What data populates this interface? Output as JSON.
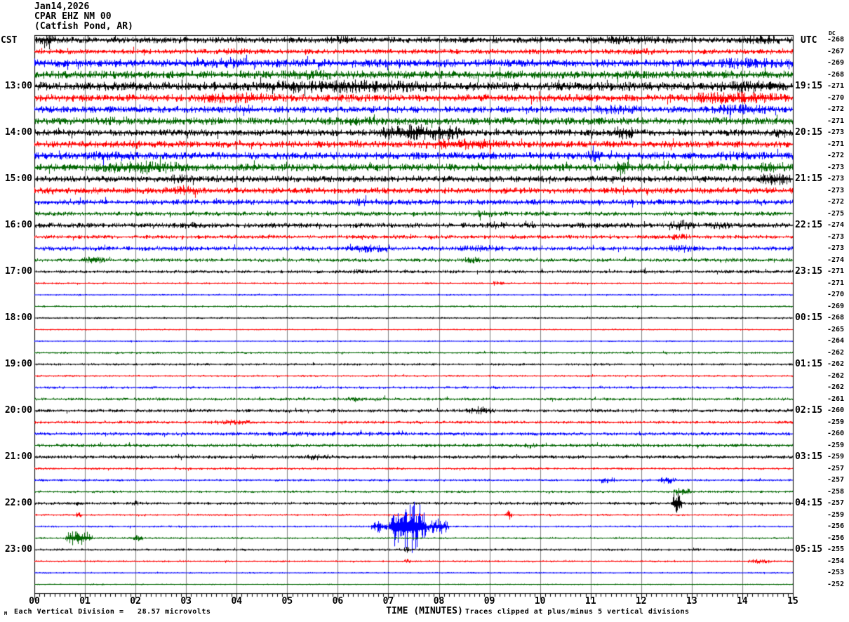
{
  "title": {
    "line1": "Jan14,2026",
    "line2": "CPAR EHZ NM 00",
    "line3": "(Catfish Pond, AR)"
  },
  "axes": {
    "left_header": "CST",
    "right_header": "UTC",
    "dc_header": "DC",
    "x_axis_title": "TIME (MINUTES)",
    "x_tick_labels": [
      "00",
      "01",
      "02",
      "03",
      "04",
      "05",
      "06",
      "07",
      "08",
      "09",
      "10",
      "11",
      "12",
      "13",
      "14",
      "15"
    ]
  },
  "footer": {
    "left_glyph": "M",
    "scale_note": "Each Vertical Division =   28.57 microvolts",
    "clip_note": "Traces clipped at plus/minus 5 vertical divisions"
  },
  "colors": {
    "black": "#000000",
    "red": "#ff0000",
    "blue": "#0000ff",
    "green": "#006600",
    "grid": "#808080",
    "background": "#ffffff"
  },
  "chart_data": {
    "type": "line",
    "kind": "helicorder-seismogram",
    "station": "CPAR EHZ NM 00",
    "station_name": "Catfish Pond, AR",
    "date": "Jan14,2026",
    "minutes_per_line": 15,
    "x_range": [
      0,
      15
    ],
    "xlabel": "TIME (MINUTES)",
    "left_timezone": "CST",
    "right_timezone": "UTC",
    "grid": true,
    "rows": [
      {
        "cst": "",
        "utc": "",
        "dc": -268,
        "color": "black",
        "amp": 4.5,
        "events": [
          [
            0,
            0.5,
            8
          ],
          [
            5.5,
            6.5,
            6
          ],
          [
            10.5,
            13,
            6.5
          ],
          [
            13.8,
            15,
            7
          ]
        ]
      },
      {
        "cst": "",
        "utc": "",
        "dc": -267,
        "color": "red",
        "amp": 3.8,
        "events": [
          [
            3.3,
            4.5,
            5
          ],
          [
            11.5,
            12.5,
            5
          ]
        ]
      },
      {
        "cst": "",
        "utc": "",
        "dc": -269,
        "color": "blue",
        "amp": 6.0,
        "events": [
          [
            3.2,
            4.6,
            8
          ],
          [
            13.2,
            15,
            8.5
          ]
        ]
      },
      {
        "cst": "",
        "utc": "",
        "dc": -268,
        "color": "green",
        "amp": 6.0,
        "events": [
          [
            4.6,
            6.3,
            8
          ],
          [
            9.5,
            10.5,
            7
          ]
        ]
      },
      {
        "cst": "13:00",
        "utc": "19:15",
        "dc": -271,
        "color": "black",
        "amp": 6.5,
        "events": [
          [
            3.8,
            8.6,
            10
          ],
          [
            13.2,
            15,
            9.5
          ]
        ]
      },
      {
        "cst": "",
        "utc": "",
        "dc": -270,
        "color": "red",
        "amp": 5.5,
        "events": [
          [
            2.8,
            5.2,
            8.5
          ],
          [
            12.6,
            15,
            9
          ]
        ]
      },
      {
        "cst": "",
        "utc": "",
        "dc": -272,
        "color": "blue",
        "amp": 5.0,
        "events": [
          [
            3.9,
            4.4,
            8
          ],
          [
            10.8,
            12.2,
            7
          ],
          [
            13.2,
            14.7,
            8
          ]
        ]
      },
      {
        "cst": "",
        "utc": "",
        "dc": -271,
        "color": "green",
        "amp": 5.5,
        "events": [
          [
            1.2,
            2.2,
            7
          ],
          [
            5.8,
            7.2,
            7
          ]
        ]
      },
      {
        "cst": "14:00",
        "utc": "20:15",
        "dc": -273,
        "color": "black",
        "amp": 5.0,
        "events": [
          [
            6.7,
            8.6,
            13
          ],
          [
            11.4,
            11.9,
            10
          ],
          [
            14.5,
            15,
            8
          ]
        ]
      },
      {
        "cst": "",
        "utc": "",
        "dc": -271,
        "color": "red",
        "amp": 5.0,
        "events": [
          [
            1.7,
            2.2,
            7
          ],
          [
            7.4,
            9.6,
            8.5
          ]
        ]
      },
      {
        "cst": "",
        "utc": "",
        "dc": -272,
        "color": "blue",
        "amp": 5.5,
        "events": [
          [
            0.9,
            2.2,
            8
          ],
          [
            10.9,
            11.25,
            10
          ],
          [
            13.2,
            14.3,
            7
          ]
        ]
      },
      {
        "cst": "",
        "utc": "",
        "dc": -273,
        "color": "green",
        "amp": 5.5,
        "events": [
          [
            1.2,
            3.1,
            10
          ],
          [
            11.5,
            11.75,
            13
          ],
          [
            14.2,
            15,
            8.5
          ]
        ]
      },
      {
        "cst": "15:00",
        "utc": "21:15",
        "dc": -273,
        "color": "black",
        "amp": 4.5,
        "events": [
          [
            2.5,
            3.2,
            7
          ],
          [
            14.3,
            15,
            10
          ]
        ]
      },
      {
        "cst": "",
        "utc": "",
        "dc": -273,
        "color": "red",
        "amp": 4.5,
        "events": [
          [
            0.1,
            0.6,
            6
          ],
          [
            2.5,
            3.3,
            8
          ]
        ]
      },
      {
        "cst": "",
        "utc": "",
        "dc": -272,
        "color": "blue",
        "amp": 4.0,
        "events": [
          [
            6.2,
            6.7,
            6
          ]
        ]
      },
      {
        "cst": "",
        "utc": "",
        "dc": -275,
        "color": "green",
        "amp": 3.2,
        "events": [
          [
            8.6,
            9.2,
            6
          ]
        ]
      },
      {
        "cst": "16:00",
        "utc": "22:15",
        "dc": -274,
        "color": "black",
        "amp": 3.8,
        "events": [
          [
            2.8,
            3.3,
            6
          ],
          [
            8.9,
            9.4,
            6
          ],
          [
            12.5,
            13.1,
            7.5
          ],
          [
            13.3,
            13.8,
            6
          ]
        ]
      },
      {
        "cst": "",
        "utc": "",
        "dc": -273,
        "color": "red",
        "amp": 2.8,
        "events": [
          [
            12.5,
            13,
            5
          ]
        ]
      },
      {
        "cst": "",
        "utc": "",
        "dc": -273,
        "color": "blue",
        "amp": 3.2,
        "events": [
          [
            6.1,
            7.1,
            6
          ],
          [
            8.2,
            9.4,
            5
          ],
          [
            12.3,
            13.3,
            5.5
          ]
        ]
      },
      {
        "cst": "",
        "utc": "",
        "dc": -274,
        "color": "green",
        "amp": 2.6,
        "events": [
          [
            0.9,
            1.4,
            6
          ],
          [
            8.4,
            8.9,
            5
          ]
        ]
      },
      {
        "cst": "17:00",
        "utc": "23:15",
        "dc": -271,
        "color": "black",
        "amp": 2.4,
        "events": [
          [
            6.2,
            6.6,
            4
          ],
          [
            11.8,
            12.4,
            3.5
          ]
        ]
      },
      {
        "cst": "",
        "utc": "",
        "dc": -271,
        "color": "red",
        "amp": 1.3,
        "events": [
          [
            9.05,
            9.3,
            4.5
          ]
        ]
      },
      {
        "cst": "",
        "utc": "",
        "dc": -270,
        "color": "blue",
        "amp": 1.2,
        "events": []
      },
      {
        "cst": "",
        "utc": "",
        "dc": -269,
        "color": "green",
        "amp": 1.4,
        "events": []
      },
      {
        "cst": "18:00",
        "utc": "00:15",
        "dc": -268,
        "color": "black",
        "amp": 1.4,
        "events": []
      },
      {
        "cst": "",
        "utc": "",
        "dc": -265,
        "color": "red",
        "amp": 1.1,
        "events": []
      },
      {
        "cst": "",
        "utc": "",
        "dc": -264,
        "color": "blue",
        "amp": 1.1,
        "events": []
      },
      {
        "cst": "",
        "utc": "",
        "dc": -262,
        "color": "green",
        "amp": 1.5,
        "events": []
      },
      {
        "cst": "19:00",
        "utc": "01:15",
        "dc": -262,
        "color": "black",
        "amp": 1.7,
        "events": []
      },
      {
        "cst": "",
        "utc": "",
        "dc": -262,
        "color": "red",
        "amp": 1.4,
        "events": []
      },
      {
        "cst": "",
        "utc": "",
        "dc": -262,
        "color": "blue",
        "amp": 1.8,
        "events": []
      },
      {
        "cst": "",
        "utc": "",
        "dc": -261,
        "color": "green",
        "amp": 2.1,
        "events": [
          [
            5.4,
            7.6,
            3
          ]
        ]
      },
      {
        "cst": "20:00",
        "utc": "02:15",
        "dc": -260,
        "color": "black",
        "amp": 2.4,
        "events": [
          [
            8.5,
            9.1,
            6.5
          ]
        ]
      },
      {
        "cst": "",
        "utc": "",
        "dc": -259,
        "color": "red",
        "amp": 2.1,
        "events": [
          [
            3.4,
            4.4,
            4
          ]
        ]
      },
      {
        "cst": "",
        "utc": "",
        "dc": -260,
        "color": "blue",
        "amp": 2.5,
        "events": [
          [
            3.4,
            8.2,
            3.5
          ]
        ]
      },
      {
        "cst": "",
        "utc": "",
        "dc": -259,
        "color": "green",
        "amp": 2.5,
        "events": [
          [
            9.6,
            10,
            4
          ]
        ]
      },
      {
        "cst": "21:00",
        "utc": "03:15",
        "dc": -259,
        "color": "black",
        "amp": 2.5,
        "events": [
          [
            5.2,
            6,
            4.5
          ]
        ]
      },
      {
        "cst": "",
        "utc": "",
        "dc": -257,
        "color": "red",
        "amp": 1.7,
        "events": []
      },
      {
        "cst": "",
        "utc": "",
        "dc": -257,
        "color": "blue",
        "amp": 1.7,
        "events": [
          [
            11.1,
            11.5,
            5
          ],
          [
            12.3,
            12.7,
            5.5
          ]
        ]
      },
      {
        "cst": "",
        "utc": "",
        "dc": -258,
        "color": "green",
        "amp": 1.7,
        "events": [
          [
            12.6,
            13,
            6
          ]
        ]
      },
      {
        "cst": "22:00",
        "utc": "04:15",
        "dc": -257,
        "color": "black",
        "amp": 2.1,
        "events": [
          [
            0.8,
            0.95,
            6
          ],
          [
            1.9,
            2.05,
            5
          ],
          [
            9.5,
            10.2,
            3
          ],
          [
            12.6,
            12.8,
            24
          ]
        ]
      },
      {
        "cst": "",
        "utc": "",
        "dc": -259,
        "color": "red",
        "amp": 1.4,
        "events": [
          [
            0.8,
            0.95,
            4
          ],
          [
            9.3,
            9.45,
            7
          ]
        ]
      },
      {
        "cst": "",
        "utc": "",
        "dc": -256,
        "color": "blue",
        "amp": 1.4,
        "events": [
          [
            6.65,
            7.0,
            9
          ],
          [
            7.0,
            7.75,
            40
          ],
          [
            7.75,
            8.2,
            12
          ]
        ]
      },
      {
        "cst": "",
        "utc": "",
        "dc": -256,
        "color": "green",
        "amp": 1.4,
        "events": [
          [
            0.6,
            1.15,
            12
          ],
          [
            1.95,
            2.15,
            5
          ]
        ]
      },
      {
        "cst": "23:00",
        "utc": "05:15",
        "dc": -255,
        "color": "black",
        "amp": 1.7,
        "events": [
          [
            7.3,
            7.45,
            5
          ]
        ]
      },
      {
        "cst": "",
        "utc": "",
        "dc": -254,
        "color": "red",
        "amp": 1.3,
        "events": [
          [
            7.3,
            7.45,
            4
          ],
          [
            14.1,
            14.6,
            3.5
          ]
        ]
      },
      {
        "cst": "",
        "utc": "",
        "dc": -253,
        "color": "blue",
        "amp": 1.1,
        "events": []
      },
      {
        "cst": "",
        "utc": "",
        "dc": -252,
        "color": "green",
        "amp": 1.0,
        "events": []
      }
    ]
  }
}
